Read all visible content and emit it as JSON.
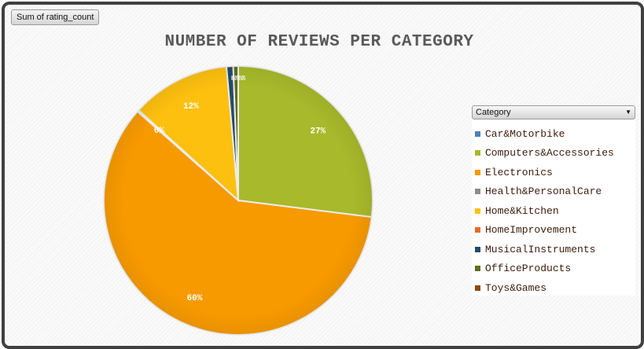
{
  "field_button": {
    "label": "Sum of rating_count"
  },
  "chart_data": {
    "type": "pie",
    "title": "NUMBER OF REVIEWS PER CATEGORY",
    "slices": [
      {
        "name": "Car&Motorbike",
        "value": 0.0,
        "label": "",
        "color": "#4f81bd"
      },
      {
        "name": "Computers&Accessories",
        "value": 27.0,
        "label": "27%",
        "color": "#a8b92b"
      },
      {
        "name": "Electronics",
        "value": 59.6,
        "label": "60%",
        "color": "#f79a00"
      },
      {
        "name": "Health&PersonalCare",
        "value": 0.2,
        "label": "0%",
        "color": "#8c8c8c"
      },
      {
        "name": "Home&Kitchen",
        "value": 11.9,
        "label": "12%",
        "color": "#fdc00f"
      },
      {
        "name": "HomeImprovement",
        "value": 0.0,
        "label": "",
        "color": "#e46c2c"
      },
      {
        "name": "MusicalInstruments",
        "value": 0.8,
        "label": "",
        "color": "#264b68"
      },
      {
        "name": "OfficeProducts",
        "value": 0.6,
        "label": "",
        "color": "#5e6f1b"
      },
      {
        "name": "Toys&Games",
        "value": 0.0,
        "label": "",
        "color": "#8c4a12"
      }
    ],
    "small_labels": "0%0%0%0%",
    "legend_title": "Category",
    "legend_position": "right"
  }
}
